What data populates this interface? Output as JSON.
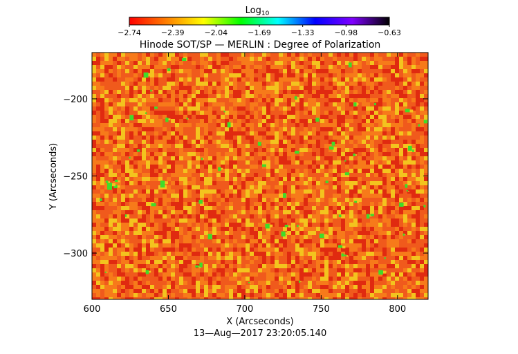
{
  "colorbar": {
    "title": "Log",
    "title_sub": "10",
    "ticks": [
      "−2.74",
      "−2.39",
      "−2.04",
      "−1.69",
      "−1.33",
      "−0.98",
      "−0.63"
    ],
    "colors": [
      "#ff0000",
      "#ff7f00",
      "#ffff00",
      "#00ff00",
      "#00ffff",
      "#0000ff",
      "#7f00ff",
      "#000000"
    ]
  },
  "plot": {
    "title": "Hinode SOT/SP — MERLIN : Degree of Polarization",
    "xlabel": "X (Arcseconds)",
    "ylabel": "Y (Arcseconds)",
    "x_ticks": [
      "600",
      "650",
      "700",
      "750",
      "800"
    ],
    "y_ticks": [
      "−200",
      "−250",
      "−300"
    ],
    "timestamp": "13—Aug—2017 23:20:05.140"
  },
  "image": {
    "x_range": [
      600,
      820
    ],
    "y_range": [
      -330,
      -170
    ],
    "x_tick_values": [
      600,
      650,
      700,
      750,
      800
    ],
    "y_tick_values": [
      -200,
      -250,
      -300
    ],
    "palette": {
      "background": "#f05a1c",
      "dark": "#e02a10",
      "mid": "#f77a1a",
      "bright": "#f3c41e",
      "hot": "#3fdc2a"
    }
  }
}
